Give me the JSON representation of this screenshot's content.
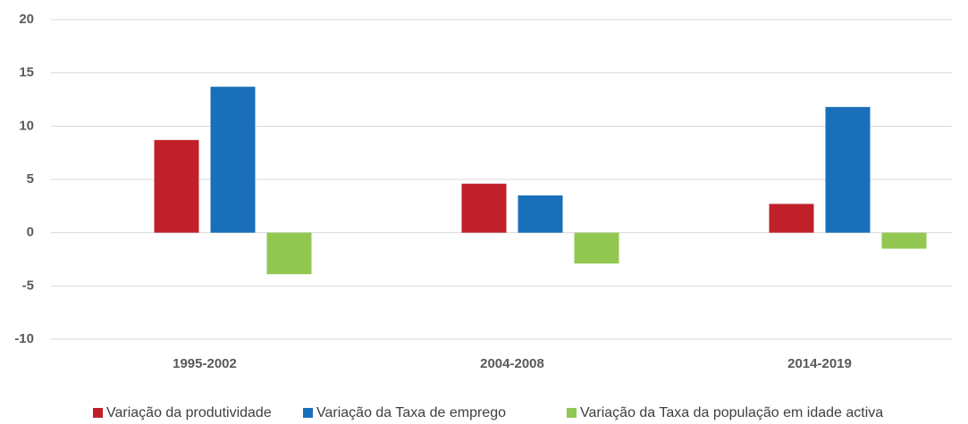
{
  "chart_data": {
    "type": "bar",
    "categories": [
      "1995-2002",
      "2004-2008",
      "2014-2019"
    ],
    "series": [
      {
        "name": "Variação da produtividade",
        "color": "#c0202a",
        "values": [
          8.7,
          4.6,
          2.7
        ]
      },
      {
        "name": "Variação da Taxa de emprego",
        "color": "#1a6fba",
        "values": [
          13.7,
          3.5,
          11.8
        ]
      },
      {
        "name": "Variação da Taxa da população em idade activa",
        "color": "#92c851",
        "values": [
          -3.9,
          -2.9,
          -1.5
        ]
      }
    ],
    "ylim": [
      -10,
      20
    ],
    "yticks": [
      -10,
      -5,
      0,
      5,
      10,
      15,
      20
    ],
    "grid": true
  }
}
